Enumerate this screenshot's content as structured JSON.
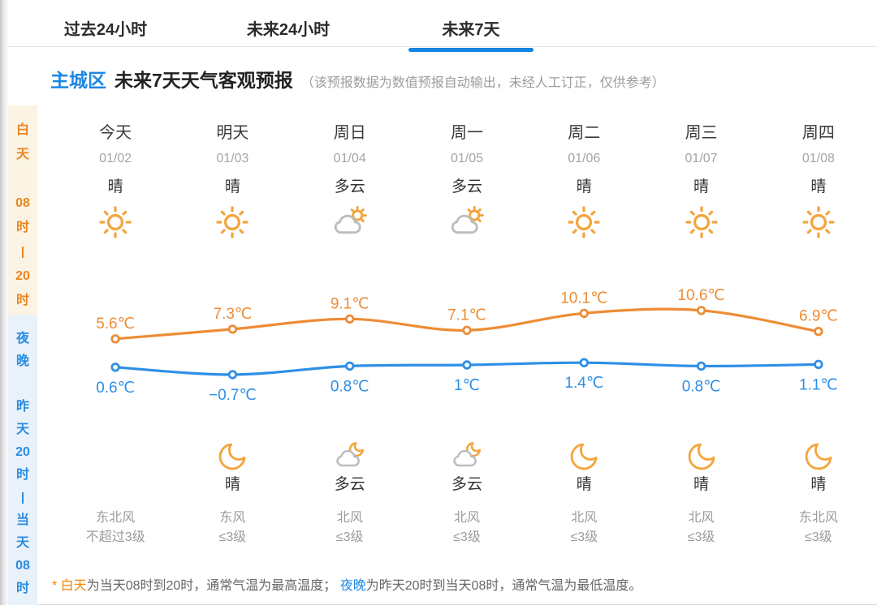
{
  "tabs": [
    {
      "label": "过去24小时",
      "active": false
    },
    {
      "label": "未来24小时",
      "active": false
    },
    {
      "label": "未来7天",
      "active": true
    }
  ],
  "header": {
    "region": "主城区",
    "title": "未来7天天气客观预报",
    "note": "（该预报数据为数值预报自动输出，未经人工订正，仅供参考）"
  },
  "sidebar": {
    "day": {
      "label_tokens": [
        "白",
        "天"
      ],
      "time_tokens": [
        "08",
        "时",
        "|",
        "20",
        "时"
      ]
    },
    "night": {
      "label_tokens": [
        "夜",
        "晚"
      ],
      "time_tokens": [
        "昨",
        "天",
        "20",
        "时",
        "|",
        "当",
        "天",
        "08",
        "时"
      ]
    }
  },
  "forecast": {
    "columns": [
      {
        "day": "今天",
        "date": "01/02",
        "day_condition": "晴",
        "day_icon": "sun",
        "night_icon": "",
        "night_condition": "",
        "wind_direction": "东北风",
        "wind_level": "不超过3级"
      },
      {
        "day": "明天",
        "date": "01/03",
        "day_condition": "晴",
        "day_icon": "sun",
        "night_icon": "moon",
        "night_condition": "晴",
        "wind_direction": "东风",
        "wind_level": "≤3级"
      },
      {
        "day": "周日",
        "date": "01/04",
        "day_condition": "多云",
        "day_icon": "cloud-sun",
        "night_icon": "cloud-moon",
        "night_condition": "多云",
        "wind_direction": "北风",
        "wind_level": "≤3级"
      },
      {
        "day": "周一",
        "date": "01/05",
        "day_condition": "多云",
        "day_icon": "cloud-sun",
        "night_icon": "cloud-moon",
        "night_condition": "多云",
        "wind_direction": "北风",
        "wind_level": "≤3级"
      },
      {
        "day": "周二",
        "date": "01/06",
        "day_condition": "晴",
        "day_icon": "sun",
        "night_icon": "moon",
        "night_condition": "晴",
        "wind_direction": "北风",
        "wind_level": "≤3级"
      },
      {
        "day": "周三",
        "date": "01/07",
        "day_condition": "晴",
        "day_icon": "sun",
        "night_icon": "moon",
        "night_condition": "晴",
        "wind_direction": "北风",
        "wind_level": "≤3级"
      },
      {
        "day": "周四",
        "date": "01/08",
        "day_condition": "晴",
        "day_icon": "sun",
        "night_icon": "moon",
        "night_condition": "晴",
        "wind_direction": "东北风",
        "wind_level": "≤3级"
      }
    ]
  },
  "chart_data": {
    "type": "line",
    "x": [
      "今天",
      "明天",
      "周日",
      "周一",
      "周二",
      "周三",
      "周四"
    ],
    "series": [
      {
        "name": "白天最高气温",
        "color": "#ee8c35",
        "label_position": "above",
        "values": [
          5.6,
          7.3,
          9.1,
          7.1,
          10.1,
          10.6,
          6.9
        ],
        "labels": [
          "5.6℃",
          "7.3℃",
          "9.1℃",
          "7.1℃",
          "10.1℃",
          "10.6℃",
          "6.9℃"
        ]
      },
      {
        "name": "夜晚最低气温",
        "color": "#2e8fe6",
        "label_position": "below",
        "values": [
          0.6,
          -0.7,
          0.8,
          1,
          1.4,
          0.8,
          1.1
        ],
        "labels": [
          "0.6℃",
          "−0.7℃",
          "0.8℃",
          "1℃",
          "1.4℃",
          "0.8℃",
          "1.1℃"
        ]
      }
    ],
    "unit": "℃",
    "grid": false,
    "legend": "none"
  },
  "footnote": {
    "parts": [
      {
        "text": "* ",
        "style": "day"
      },
      {
        "text": "白天",
        "style": "day"
      },
      {
        "text": "为当天08时到20时，通常气温为最高温度； ",
        "style": "muted"
      },
      {
        "text": "夜晚",
        "style": "night"
      },
      {
        "text": "为昨天20时到当天08时，通常气温为最低温度。",
        "style": "muted"
      }
    ]
  },
  "colors": {
    "accent_blue": "#1583e2",
    "header_blue": "#1d87e4",
    "day_orange": "#e8861f",
    "day_bg": "#fbf3e3",
    "night_blue": "#2a8ce0",
    "night_bg": "#e9f2fb",
    "high_line": "#ee8c35",
    "low_line": "#2e8fe6",
    "icon_yellow": "#f2a53e",
    "footnote_day": "#f08300",
    "footnote_night": "#1d87e4"
  }
}
